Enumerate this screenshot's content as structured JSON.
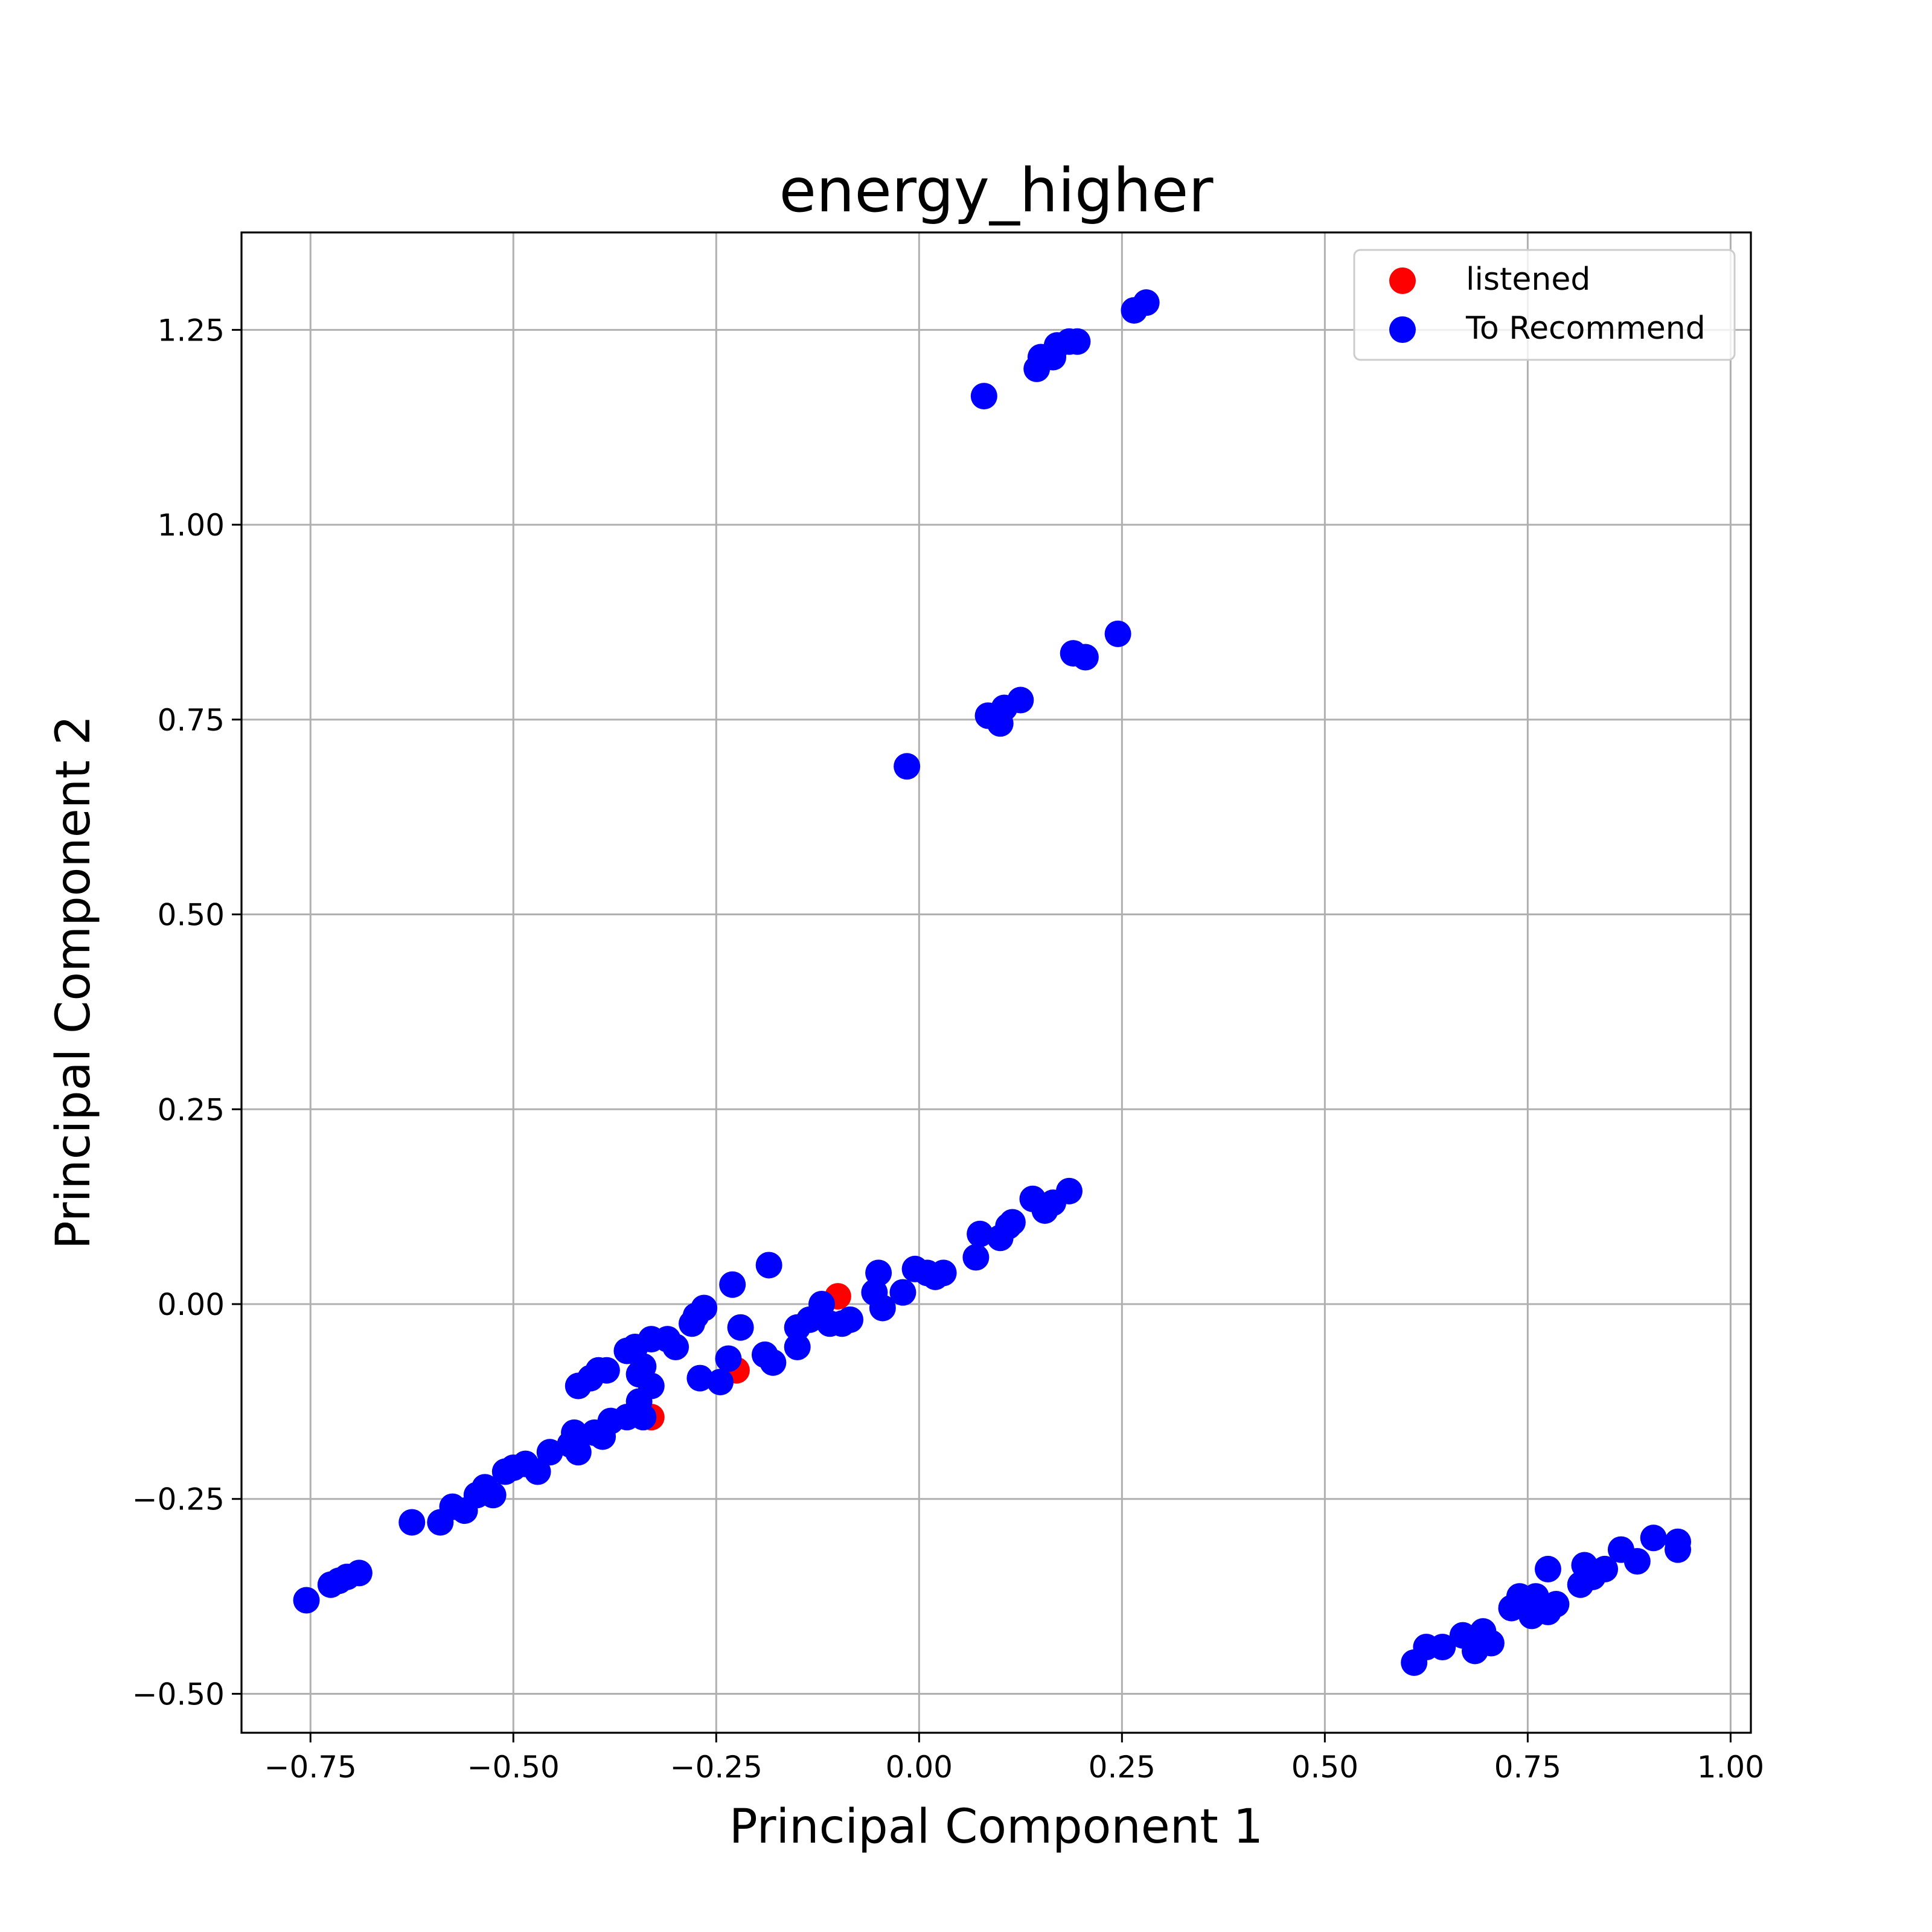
{
  "chart_data": {
    "type": "scatter",
    "title": "energy_higher",
    "xlabel": "Principal Component 1",
    "ylabel": "Principal Component 2",
    "xlim": [
      -0.835,
      1.025
    ],
    "ylim": [
      -0.55,
      1.375
    ],
    "xticks": [
      -0.75,
      -0.5,
      -0.25,
      0.0,
      0.25,
      0.5,
      0.75,
      1.0
    ],
    "xtick_labels": [
      "−0.75",
      "−0.50",
      "−0.25",
      "0.00",
      "0.25",
      "0.50",
      "0.75",
      "1.00"
    ],
    "yticks": [
      -0.5,
      -0.25,
      0.0,
      0.25,
      0.5,
      0.75,
      1.0,
      1.25
    ],
    "ytick_labels": [
      "−0.50",
      "−0.25",
      "0.00",
      "0.25",
      "0.50",
      "0.75",
      "1.00",
      "1.25"
    ],
    "grid": true,
    "legend_position": "upper right",
    "series": [
      {
        "name": "listened",
        "color": "#ff0000",
        "points": [
          [
            -0.1,
            0.01
          ],
          [
            -0.225,
            -0.085
          ],
          [
            -0.33,
            -0.145
          ]
        ]
      },
      {
        "name": "To Recommend",
        "color": "#0000ff",
        "points": [
          [
            -0.755,
            -0.38
          ],
          [
            -0.725,
            -0.36
          ],
          [
            -0.715,
            -0.355
          ],
          [
            -0.705,
            -0.35
          ],
          [
            -0.69,
            -0.345
          ],
          [
            -0.625,
            -0.28
          ],
          [
            -0.59,
            -0.28
          ],
          [
            -0.575,
            -0.26
          ],
          [
            -0.56,
            -0.265
          ],
          [
            -0.545,
            -0.245
          ],
          [
            -0.535,
            -0.235
          ],
          [
            -0.525,
            -0.245
          ],
          [
            -0.51,
            -0.215
          ],
          [
            -0.5,
            -0.21
          ],
          [
            -0.485,
            -0.205
          ],
          [
            -0.47,
            -0.215
          ],
          [
            -0.455,
            -0.19
          ],
          [
            -0.425,
            -0.165
          ],
          [
            -0.43,
            -0.18
          ],
          [
            -0.42,
            -0.19
          ],
          [
            -0.4,
            -0.165
          ],
          [
            -0.39,
            -0.17
          ],
          [
            -0.38,
            -0.15
          ],
          [
            -0.36,
            -0.145
          ],
          [
            -0.345,
            -0.125
          ],
          [
            -0.34,
            -0.145
          ],
          [
            -0.33,
            -0.105
          ],
          [
            -0.345,
            -0.09
          ],
          [
            -0.34,
            -0.08
          ],
          [
            -0.36,
            -0.06
          ],
          [
            -0.35,
            -0.055
          ],
          [
            -0.33,
            -0.045
          ],
          [
            -0.31,
            -0.045
          ],
          [
            -0.3,
            -0.055
          ],
          [
            -0.28,
            -0.025
          ],
          [
            -0.275,
            -0.015
          ],
          [
            -0.265,
            -0.005
          ],
          [
            -0.27,
            -0.095
          ],
          [
            -0.245,
            -0.1
          ],
          [
            -0.235,
            -0.07
          ],
          [
            -0.23,
            0.025
          ],
          [
            -0.22,
            -0.03
          ],
          [
            -0.185,
            0.05
          ],
          [
            -0.19,
            -0.065
          ],
          [
            -0.18,
            -0.075
          ],
          [
            -0.15,
            -0.055
          ],
          [
            -0.15,
            -0.03
          ],
          [
            -0.135,
            -0.02
          ],
          [
            -0.12,
            0.0
          ],
          [
            -0.11,
            -0.025
          ],
          [
            -0.095,
            -0.025
          ],
          [
            -0.085,
            -0.02
          ],
          [
            -0.055,
            0.015
          ],
          [
            -0.05,
            0.04
          ],
          [
            -0.045,
            -0.005
          ],
          [
            -0.02,
            0.015
          ],
          [
            -0.005,
            0.045
          ],
          [
            0.01,
            0.04
          ],
          [
            0.02,
            0.035
          ],
          [
            0.03,
            0.04
          ],
          [
            0.07,
            0.06
          ],
          [
            0.075,
            0.09
          ],
          [
            0.1,
            0.085
          ],
          [
            0.11,
            0.1
          ],
          [
            0.115,
            0.105
          ],
          [
            0.14,
            0.135
          ],
          [
            0.155,
            0.12
          ],
          [
            0.165,
            0.13
          ],
          [
            0.185,
            0.145
          ],
          [
            -0.42,
            -0.105
          ],
          [
            -0.405,
            -0.095
          ],
          [
            -0.395,
            -0.085
          ],
          [
            -0.385,
            -0.085
          ],
          [
            -0.015,
            0.69
          ],
          [
            0.085,
            0.755
          ],
          [
            0.1,
            0.745
          ],
          [
            0.105,
            0.765
          ],
          [
            0.125,
            0.775
          ],
          [
            0.19,
            0.835
          ],
          [
            0.205,
            0.83
          ],
          [
            0.245,
            0.86
          ],
          [
            0.08,
            1.165
          ],
          [
            0.145,
            1.2
          ],
          [
            0.15,
            1.215
          ],
          [
            0.165,
            1.215
          ],
          [
            0.17,
            1.23
          ],
          [
            0.185,
            1.235
          ],
          [
            0.195,
            1.235
          ],
          [
            0.265,
            1.275
          ],
          [
            0.28,
            1.285
          ],
          [
            0.61,
            -0.46
          ],
          [
            0.625,
            -0.44
          ],
          [
            0.645,
            -0.44
          ],
          [
            0.67,
            -0.425
          ],
          [
            0.685,
            -0.445
          ],
          [
            0.695,
            -0.42
          ],
          [
            0.705,
            -0.435
          ],
          [
            0.73,
            -0.39
          ],
          [
            0.74,
            -0.375
          ],
          [
            0.755,
            -0.4
          ],
          [
            0.76,
            -0.375
          ],
          [
            0.765,
            -0.39
          ],
          [
            0.775,
            -0.395
          ],
          [
            0.775,
            -0.34
          ],
          [
            0.785,
            -0.385
          ],
          [
            0.815,
            -0.36
          ],
          [
            0.82,
            -0.335
          ],
          [
            0.83,
            -0.35
          ],
          [
            0.845,
            -0.34
          ],
          [
            0.865,
            -0.315
          ],
          [
            0.885,
            -0.33
          ],
          [
            0.905,
            -0.3
          ],
          [
            0.935,
            -0.305
          ],
          [
            0.935,
            -0.315
          ]
        ]
      }
    ]
  }
}
